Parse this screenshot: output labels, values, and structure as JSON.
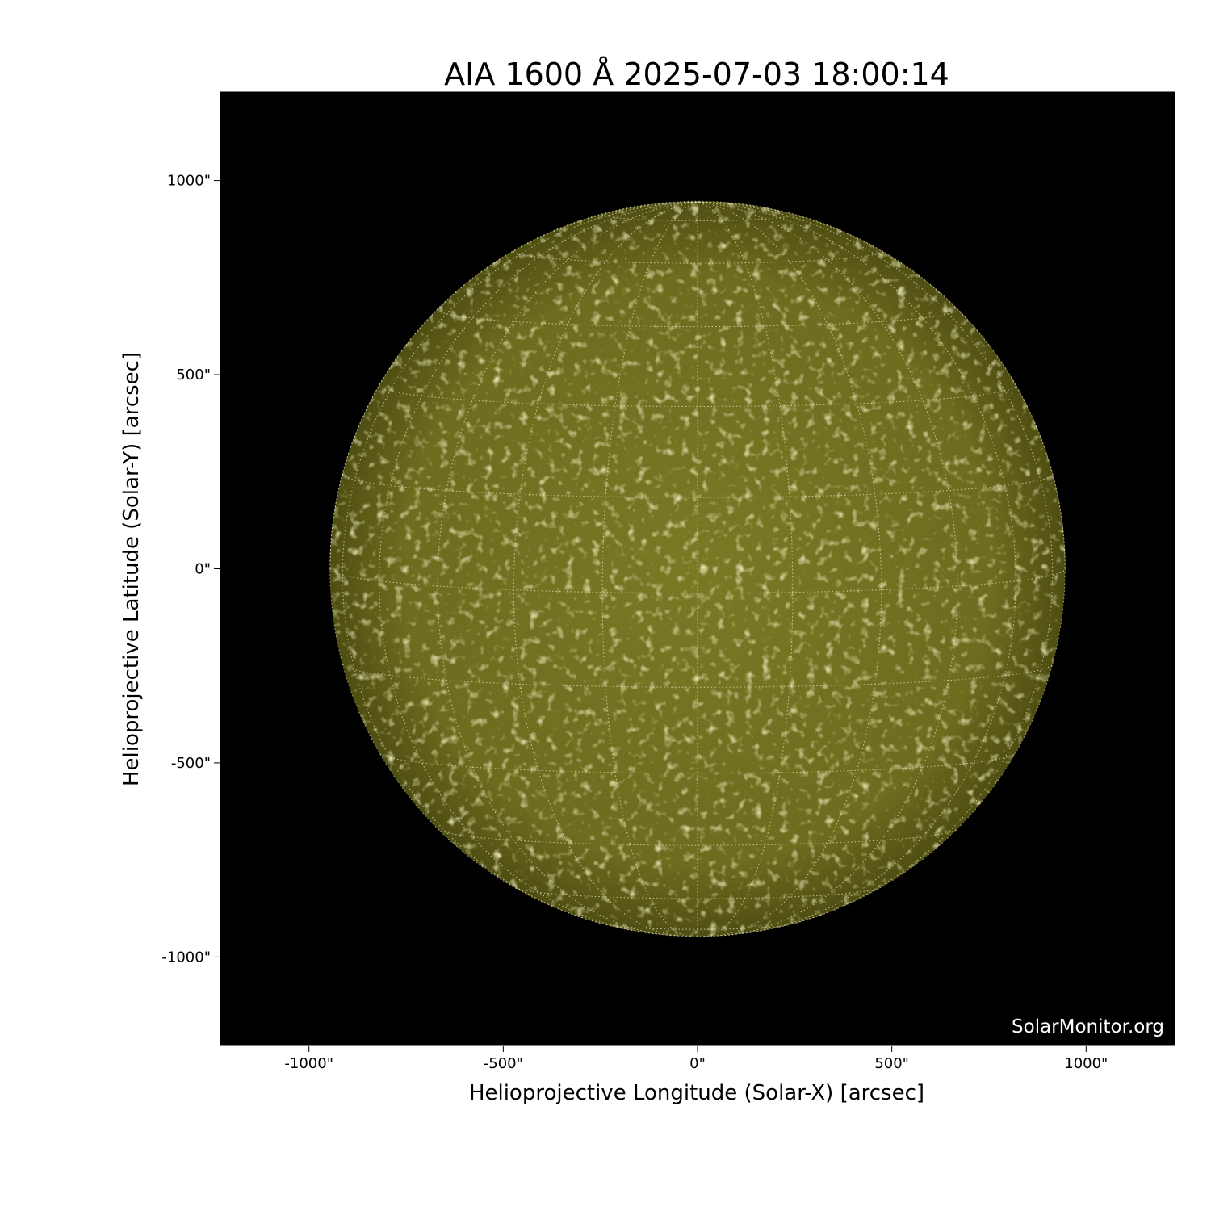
{
  "chart_data": {
    "type": "image",
    "title": "AIA 1600 Å 2025-07-03 18:00:14",
    "xlabel": "Helioprojective Longitude (Solar-X) [arcsec]",
    "ylabel": "Helioprojective Latitude (Solar-Y) [arcsec]",
    "xlim": [
      -1230,
      1230
    ],
    "ylim": [
      -1230,
      1230
    ],
    "xticks": [
      -1000,
      -500,
      0,
      500,
      1000
    ],
    "yticks": [
      -1000,
      -500,
      0,
      500,
      1000
    ],
    "xtick_labels": [
      "-1000\"",
      "-500\"",
      "0\"",
      "500\"",
      "1000\""
    ],
    "ytick_labels": [
      "-1000\"",
      "-500\"",
      "0\"",
      "500\"",
      "1000\""
    ],
    "solar_radius_arcsec": 946,
    "grid_spacing_deg": 15,
    "grid": true,
    "colormap": "sdoaia1600",
    "colors": {
      "disk": "#6f6e1e",
      "disk_edge": "#4d4c12",
      "plage": "#c9c88a",
      "background": "#000000"
    },
    "watermark": "SolarMonitor.org"
  }
}
